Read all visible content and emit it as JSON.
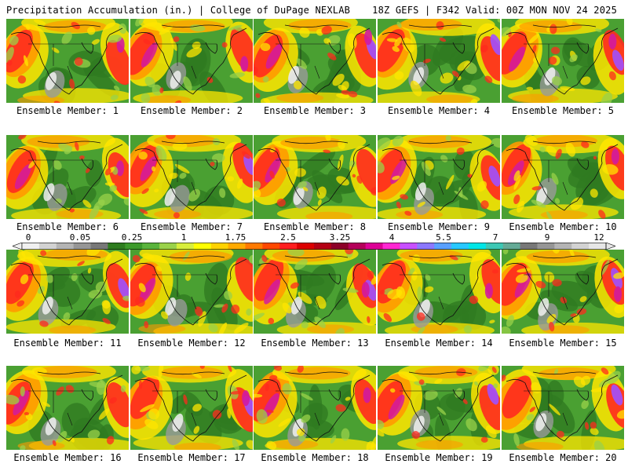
{
  "header": {
    "title_left": "Precipitation Accumulation (in.) | College of DuPage NEXLAB",
    "title_right": "18Z GEFS | F342 Valid: 00Z MON NOV 24 2025"
  },
  "caption_prefix": "Ensemble Member: ",
  "members": [
    {
      "label": "Ensemble Member: 1"
    },
    {
      "label": "Ensemble Member: 2"
    },
    {
      "label": "Ensemble Member: 3"
    },
    {
      "label": "Ensemble Member: 4"
    },
    {
      "label": "Ensemble Member: 5"
    },
    {
      "label": "Ensemble Member: 6"
    },
    {
      "label": "Ensemble Member: 7"
    },
    {
      "label": "Ensemble Member: 8"
    },
    {
      "label": "Ensemble Member: 9"
    },
    {
      "label": "Ensemble Member: 10"
    },
    {
      "label": "Ensemble Member: 11"
    },
    {
      "label": "Ensemble Member: 12"
    },
    {
      "label": "Ensemble Member: 13"
    },
    {
      "label": "Ensemble Member: 14"
    },
    {
      "label": "Ensemble Member: 15"
    },
    {
      "label": "Ensemble Member: 16"
    },
    {
      "label": "Ensemble Member: 17"
    },
    {
      "label": "Ensemble Member: 18"
    },
    {
      "label": "Ensemble Member: 19"
    },
    {
      "label": "Ensemble Member: 20"
    }
  ],
  "colorbar": {
    "labels": [
      "0",
      "0.05",
      "0.25",
      "1",
      "1.75",
      "2.5",
      "3.25",
      "4",
      "5.5",
      "7",
      "9",
      "12"
    ],
    "colors": [
      "#f0f0f0",
      "#d2d2d2",
      "#b4b4b4",
      "#969696",
      "#787878",
      "#2e7d1e",
      "#3c9a2a",
      "#5ab43c",
      "#9ad24a",
      "#d8ee3c",
      "#ffff00",
      "#ffd200",
      "#ffaa00",
      "#ff7a00",
      "#ff4800",
      "#ff1e1e",
      "#dc0000",
      "#b40014",
      "#8c0028",
      "#b4005a",
      "#dc0096",
      "#ff28d2",
      "#c850ff",
      "#8c78ff",
      "#5aa0ff",
      "#28c8ff",
      "#00e6e6",
      "#3cc8b4",
      "#64aa96",
      "#787878",
      "#969696",
      "#b4b4b4",
      "#d2d2d2",
      "#e6e6e6"
    ],
    "tick_label_count": 12
  },
  "map_colors": {
    "green_dark": "#2f7a20",
    "green": "#4aa032",
    "lime": "#9ad24a",
    "yellow": "#ffe600",
    "orange": "#ff9a00",
    "red": "#ff2a1e",
    "magenta": "#d21aa0",
    "purple": "#a050ff",
    "gray": "#9a9a9a",
    "white": "#f0f0f0",
    "coast": "#101010"
  }
}
